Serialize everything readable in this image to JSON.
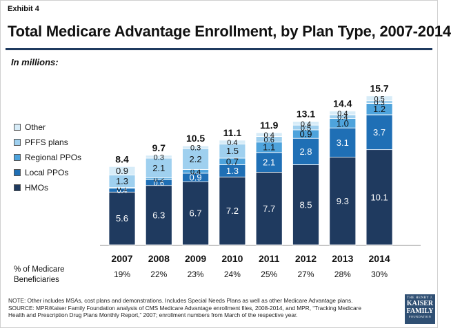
{
  "header": {
    "exhibit": "Exhibit 4",
    "title": "Total Medicare Advantage Enrollment, by Plan Type, 2007-2014",
    "units": "In millions:"
  },
  "colors": {
    "HMOs": "#1f3a5f",
    "Local PPOs": "#1f6fb5",
    "Regional PPOs": "#4ea3dc",
    "PFFS plans": "#9fd0ef",
    "Other": "#d7ecf8",
    "rule": "#1f3a5f"
  },
  "chart_data": {
    "type": "bar",
    "stacked": true,
    "categories": [
      "2007",
      "2008",
      "2009",
      "2010",
      "2011",
      "2012",
      "2013",
      "2014"
    ],
    "series": [
      {
        "name": "HMOs",
        "values": [
          5.6,
          6.3,
          6.7,
          7.2,
          7.7,
          8.5,
          9.3,
          10.1
        ],
        "labels": [
          "5.6",
          "6.3",
          "6.7",
          "7.2",
          "7.7",
          "8.5",
          "9.3",
          "10.1"
        ]
      },
      {
        "name": "Local PPOs",
        "values": [
          0.4,
          0.6,
          0.9,
          1.3,
          2.1,
          2.8,
          3.1,
          3.7
        ],
        "labels": [
          "0.4",
          "0.6",
          "0.9",
          "1.3",
          "2.1",
          "2.8",
          "3.1",
          "3.7"
        ]
      },
      {
        "name": "Regional PPOs",
        "values": [
          0.1,
          0.2,
          0.4,
          0.7,
          1.1,
          0.9,
          1.0,
          1.2
        ],
        "labels": [
          "0.1",
          "0.2",
          "0.4",
          "0.7",
          "1.1",
          "0.9",
          "1.0",
          "1.2"
        ]
      },
      {
        "name": "PFFS plans",
        "values": [
          1.3,
          2.1,
          2.2,
          1.5,
          0.6,
          0.5,
          0.4,
          0.3
        ],
        "labels": [
          "1.3",
          "2.1",
          "2.2",
          "1.5",
          "0.6",
          "0.5",
          "0.4",
          "0.3"
        ]
      },
      {
        "name": "Other",
        "values": [
          0.9,
          0.3,
          0.3,
          0.4,
          0.4,
          0.4,
          0.4,
          0.5
        ],
        "labels": [
          "0.9",
          "0.3",
          "0.3",
          "0.4",
          "0.4",
          "0.4",
          "0.4",
          "0.5"
        ]
      }
    ],
    "totals": [
      "8.4",
      "9.7",
      "10.5",
      "11.1",
      "11.9",
      "13.1",
      "14.4",
      "15.7"
    ],
    "ylim": [
      0,
      16
    ],
    "grid": false,
    "legend_position": "left"
  },
  "legend": [
    "Other",
    "PFFS plans",
    "Regional PPOs",
    "Local PPOs",
    "HMOs"
  ],
  "pct_row": {
    "label_line1": "% of Medicare",
    "label_line2": "Beneficiaries",
    "values": [
      "19%",
      "22%",
      "23%",
      "24%",
      "25%",
      "27%",
      "28%",
      "30%"
    ]
  },
  "footnote": {
    "line1": "NOTE:  Other includes MSAs, cost plans and demonstrations.  Includes Special Needs Plans as well as other Medicare Advantage plans.",
    "line2": "SOURCE:  MPR/Kaiser Family Foundation analysis of CMS Medicare Advantage enrollment files, 2008-2014, and MPR, “Tracking Medicare",
    "line3": "Health and Prescription Drug Plans Monthly Report,” 2007; enrollment numbers from March of the respective year."
  },
  "logo": {
    "line1": "THE HENRY J.",
    "line2": "KAISER",
    "line3": "FAMILY",
    "line4": "FOUNDATION"
  }
}
